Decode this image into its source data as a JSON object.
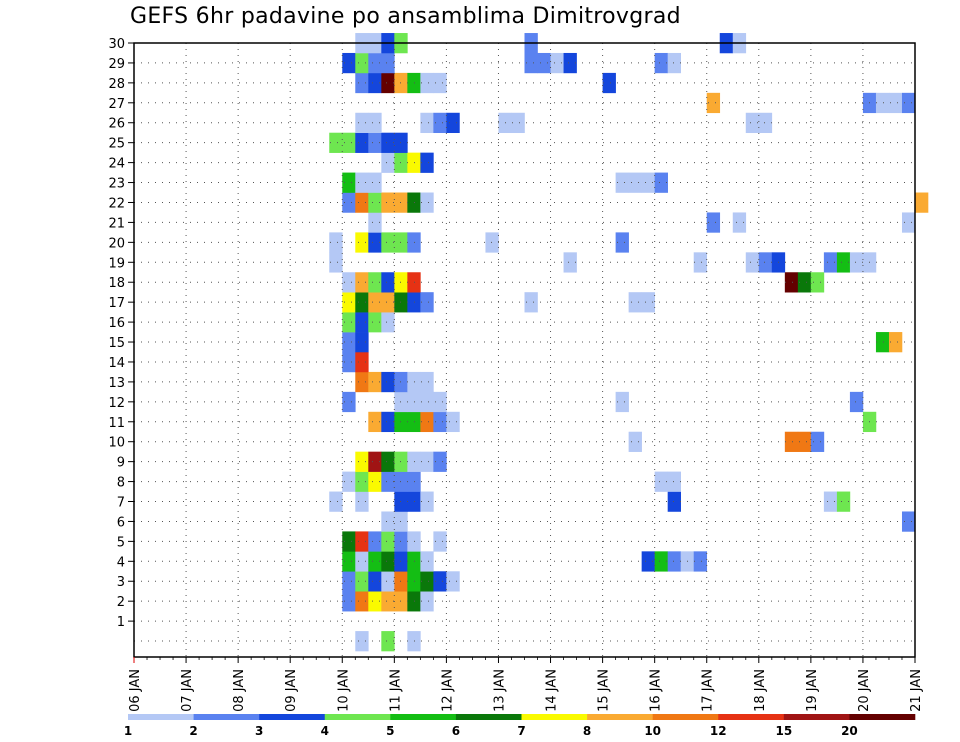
{
  "chart_data": {
    "type": "heatmap",
    "title": "GEFS 6hr padavine po ansamblima Dimitrovgrad",
    "xlabel": "",
    "ylabel": "",
    "x_ticks": [
      "06 JAN",
      "07 JAN",
      "08 JAN",
      "09 JAN",
      "10 JAN",
      "11 JAN",
      "12 JAN",
      "13 JAN",
      "14 JAN",
      "15 JAN",
      "16 JAN",
      "17 JAN",
      "18 JAN",
      "19 JAN",
      "20 JAN",
      "21 JAN"
    ],
    "xlim": [
      "06 JAN 00Z",
      "21 JAN 00Z"
    ],
    "time_step": "6hr",
    "y_ticks": [
      "1",
      "2",
      "3",
      "4",
      "5",
      "6",
      "7",
      "8",
      "9",
      "10",
      "11",
      "12",
      "13",
      "14",
      "15",
      "16",
      "17",
      "18",
      "19",
      "20",
      "21",
      "22",
      "23",
      "24",
      "25",
      "26",
      "27",
      "28",
      "29",
      "30"
    ],
    "ylim": [
      0,
      30
    ],
    "grid": "dotted",
    "colorbar": {
      "placement": "bottom",
      "labels": [
        "1",
        "2",
        "3",
        "4",
        "5",
        "6",
        "7",
        "8",
        "10",
        "12",
        "15",
        "20"
      ],
      "colors": [
        "#b4c8f5",
        "#5a82f0",
        "#1446dc",
        "#6ee650",
        "#14be14",
        "#0a780a",
        "#fafa00",
        "#faaa32",
        "#f07814",
        "#e63214",
        "#a01414",
        "#640000"
      ]
    },
    "cells": [
      {
        "m": 0,
        "s": 17,
        "l": 1
      },
      {
        "m": 0,
        "s": 19,
        "l": 4
      },
      {
        "m": 0,
        "s": 21,
        "l": 1
      },
      {
        "m": 2,
        "s": 16,
        "l": 2
      },
      {
        "m": 2,
        "s": 17,
        "l": 9
      },
      {
        "m": 2,
        "s": 18,
        "l": 7
      },
      {
        "m": 2,
        "s": 19,
        "l": 8
      },
      {
        "m": 2,
        "s": 20,
        "l": 8
      },
      {
        "m": 2,
        "s": 21,
        "l": 6
      },
      {
        "m": 2,
        "s": 22,
        "l": 1
      },
      {
        "m": 3,
        "s": 16,
        "l": 2
      },
      {
        "m": 3,
        "s": 17,
        "l": 4
      },
      {
        "m": 3,
        "s": 18,
        "l": 3
      },
      {
        "m": 3,
        "s": 19,
        "l": 1
      },
      {
        "m": 3,
        "s": 20,
        "l": 9
      },
      {
        "m": 3,
        "s": 21,
        "l": 5
      },
      {
        "m": 3,
        "s": 22,
        "l": 6
      },
      {
        "m": 3,
        "s": 23,
        "l": 3
      },
      {
        "m": 3,
        "s": 24,
        "l": 1
      },
      {
        "m": 4,
        "s": 16,
        "l": 5
      },
      {
        "m": 4,
        "s": 17,
        "l": 1
      },
      {
        "m": 4,
        "s": 18,
        "l": 5
      },
      {
        "m": 4,
        "s": 19,
        "l": 6
      },
      {
        "m": 4,
        "s": 20,
        "l": 3
      },
      {
        "m": 4,
        "s": 21,
        "l": 5
      },
      {
        "m": 4,
        "s": 22,
        "l": 1
      },
      {
        "m": 4,
        "s": 39,
        "l": 3
      },
      {
        "m": 4,
        "s": 40,
        "l": 5
      },
      {
        "m": 4,
        "s": 41,
        "l": 2
      },
      {
        "m": 4,
        "s": 42,
        "l": 1
      },
      {
        "m": 4,
        "s": 43,
        "l": 2
      },
      {
        "m": 5,
        "s": 16,
        "l": 6
      },
      {
        "m": 5,
        "s": 17,
        "l": 10
      },
      {
        "m": 5,
        "s": 18,
        "l": 2
      },
      {
        "m": 5,
        "s": 19,
        "l": 4
      },
      {
        "m": 5,
        "s": 20,
        "l": 2
      },
      {
        "m": 5,
        "s": 21,
        "l": 1
      },
      {
        "m": 5,
        "s": 23,
        "l": 1
      },
      {
        "m": 6,
        "s": 19,
        "l": 1
      },
      {
        "m": 6,
        "s": 20,
        "l": 1
      },
      {
        "m": 6,
        "s": 59,
        "l": 2
      },
      {
        "m": 7,
        "s": 15,
        "l": 1
      },
      {
        "m": 7,
        "s": 17,
        "l": 1
      },
      {
        "m": 7,
        "s": 20,
        "l": 3
      },
      {
        "m": 7,
        "s": 21,
        "l": 3
      },
      {
        "m": 7,
        "s": 22,
        "l": 1
      },
      {
        "m": 7,
        "s": 41,
        "l": 3
      },
      {
        "m": 7,
        "s": 53,
        "l": 1
      },
      {
        "m": 7,
        "s": 54,
        "l": 4
      },
      {
        "m": 8,
        "s": 16,
        "l": 1
      },
      {
        "m": 8,
        "s": 17,
        "l": 4
      },
      {
        "m": 8,
        "s": 18,
        "l": 7
      },
      {
        "m": 8,
        "s": 19,
        "l": 2
      },
      {
        "m": 8,
        "s": 20,
        "l": 2
      },
      {
        "m": 8,
        "s": 21,
        "l": 2
      },
      {
        "m": 8,
        "s": 40,
        "l": 1
      },
      {
        "m": 8,
        "s": 41,
        "l": 1
      },
      {
        "m": 9,
        "s": 17,
        "l": 7
      },
      {
        "m": 9,
        "s": 18,
        "l": 11
      },
      {
        "m": 9,
        "s": 19,
        "l": 6
      },
      {
        "m": 9,
        "s": 20,
        "l": 4
      },
      {
        "m": 9,
        "s": 21,
        "l": 1
      },
      {
        "m": 9,
        "s": 22,
        "l": 1
      },
      {
        "m": 9,
        "s": 23,
        "l": 2
      },
      {
        "m": 10,
        "s": 38,
        "l": 1
      },
      {
        "m": 10,
        "s": 50,
        "l": 9
      },
      {
        "m": 10,
        "s": 51,
        "l": 9
      },
      {
        "m": 10,
        "s": 52,
        "l": 2
      },
      {
        "m": 11,
        "s": 18,
        "l": 8
      },
      {
        "m": 11,
        "s": 19,
        "l": 3
      },
      {
        "m": 11,
        "s": 20,
        "l": 5
      },
      {
        "m": 11,
        "s": 21,
        "l": 5
      },
      {
        "m": 11,
        "s": 22,
        "l": 9
      },
      {
        "m": 11,
        "s": 23,
        "l": 2
      },
      {
        "m": 11,
        "s": 24,
        "l": 1
      },
      {
        "m": 11,
        "s": 56,
        "l": 4
      },
      {
        "m": 12,
        "s": 16,
        "l": 2
      },
      {
        "m": 12,
        "s": 20,
        "l": 1
      },
      {
        "m": 12,
        "s": 21,
        "l": 1
      },
      {
        "m": 12,
        "s": 22,
        "l": 1
      },
      {
        "m": 12,
        "s": 23,
        "l": 1
      },
      {
        "m": 12,
        "s": 37,
        "l": 1
      },
      {
        "m": 12,
        "s": 55,
        "l": 2
      },
      {
        "m": 13,
        "s": 17,
        "l": 9
      },
      {
        "m": 13,
        "s": 18,
        "l": 8
      },
      {
        "m": 13,
        "s": 19,
        "l": 3
      },
      {
        "m": 13,
        "s": 20,
        "l": 2
      },
      {
        "m": 13,
        "s": 21,
        "l": 1
      },
      {
        "m": 13,
        "s": 22,
        "l": 1
      },
      {
        "m": 14,
        "s": 16,
        "l": 2
      },
      {
        "m": 14,
        "s": 17,
        "l": 10
      },
      {
        "m": 15,
        "s": 16,
        "l": 2
      },
      {
        "m": 15,
        "s": 17,
        "l": 3
      },
      {
        "m": 15,
        "s": 57,
        "l": 5
      },
      {
        "m": 15,
        "s": 58,
        "l": 8
      },
      {
        "m": 16,
        "s": 16,
        "l": 4
      },
      {
        "m": 16,
        "s": 17,
        "l": 3
      },
      {
        "m": 16,
        "s": 18,
        "l": 4
      },
      {
        "m": 16,
        "s": 19,
        "l": 1
      },
      {
        "m": 17,
        "s": 16,
        "l": 7
      },
      {
        "m": 17,
        "s": 17,
        "l": 6
      },
      {
        "m": 17,
        "s": 18,
        "l": 8
      },
      {
        "m": 17,
        "s": 19,
        "l": 8
      },
      {
        "m": 17,
        "s": 20,
        "l": 6
      },
      {
        "m": 17,
        "s": 21,
        "l": 3
      },
      {
        "m": 17,
        "s": 22,
        "l": 2
      },
      {
        "m": 17,
        "s": 30,
        "l": 1
      },
      {
        "m": 17,
        "s": 38,
        "l": 1
      },
      {
        "m": 17,
        "s": 39,
        "l": 1
      },
      {
        "m": 18,
        "s": 16,
        "l": 1
      },
      {
        "m": 18,
        "s": 17,
        "l": 8
      },
      {
        "m": 18,
        "s": 18,
        "l": 4
      },
      {
        "m": 18,
        "s": 19,
        "l": 3
      },
      {
        "m": 18,
        "s": 20,
        "l": 7
      },
      {
        "m": 18,
        "s": 21,
        "l": 10
      },
      {
        "m": 18,
        "s": 50,
        "l": 12
      },
      {
        "m": 18,
        "s": 51,
        "l": 6
      },
      {
        "m": 18,
        "s": 52,
        "l": 4
      },
      {
        "m": 19,
        "s": 15,
        "l": 1
      },
      {
        "m": 19,
        "s": 33,
        "l": 1
      },
      {
        "m": 19,
        "s": 43,
        "l": 1
      },
      {
        "m": 19,
        "s": 47,
        "l": 1
      },
      {
        "m": 19,
        "s": 48,
        "l": 2
      },
      {
        "m": 19,
        "s": 49,
        "l": 3
      },
      {
        "m": 19,
        "s": 53,
        "l": 2
      },
      {
        "m": 19,
        "s": 54,
        "l": 5
      },
      {
        "m": 19,
        "s": 55,
        "l": 1
      },
      {
        "m": 19,
        "s": 56,
        "l": 1
      },
      {
        "m": 20,
        "s": 15,
        "l": 1
      },
      {
        "m": 20,
        "s": 17,
        "l": 7
      },
      {
        "m": 20,
        "s": 18,
        "l": 3
      },
      {
        "m": 20,
        "s": 19,
        "l": 4
      },
      {
        "m": 20,
        "s": 20,
        "l": 4
      },
      {
        "m": 20,
        "s": 21,
        "l": 2
      },
      {
        "m": 20,
        "s": 27,
        "l": 1
      },
      {
        "m": 20,
        "s": 37,
        "l": 2
      },
      {
        "m": 21,
        "s": 18,
        "l": 1
      },
      {
        "m": 21,
        "s": 44,
        "l": 2
      },
      {
        "m": 21,
        "s": 46,
        "l": 1
      },
      {
        "m": 21,
        "s": 59,
        "l": 1
      },
      {
        "m": 22,
        "s": 16,
        "l": 2
      },
      {
        "m": 22,
        "s": 17,
        "l": 9
      },
      {
        "m": 22,
        "s": 18,
        "l": 4
      },
      {
        "m": 22,
        "s": 19,
        "l": 8
      },
      {
        "m": 22,
        "s": 20,
        "l": 8
      },
      {
        "m": 22,
        "s": 21,
        "l": 6
      },
      {
        "m": 22,
        "s": 22,
        "l": 1
      },
      {
        "m": 22,
        "s": 60,
        "l": 8
      },
      {
        "m": 23,
        "s": 16,
        "l": 5
      },
      {
        "m": 23,
        "s": 17,
        "l": 1
      },
      {
        "m": 23,
        "s": 18,
        "l": 1
      },
      {
        "m": 23,
        "s": 37,
        "l": 1
      },
      {
        "m": 23,
        "s": 38,
        "l": 1
      },
      {
        "m": 23,
        "s": 39,
        "l": 1
      },
      {
        "m": 23,
        "s": 40,
        "l": 2
      },
      {
        "m": 24,
        "s": 19,
        "l": 1
      },
      {
        "m": 24,
        "s": 20,
        "l": 4
      },
      {
        "m": 24,
        "s": 21,
        "l": 7
      },
      {
        "m": 24,
        "s": 22,
        "l": 3
      },
      {
        "m": 25,
        "s": 15,
        "l": 4
      },
      {
        "m": 25,
        "s": 16,
        "l": 4
      },
      {
        "m": 25,
        "s": 17,
        "l": 3
      },
      {
        "m": 25,
        "s": 18,
        "l": 2
      },
      {
        "m": 25,
        "s": 19,
        "l": 3
      },
      {
        "m": 25,
        "s": 20,
        "l": 3
      },
      {
        "m": 26,
        "s": 17,
        "l": 1
      },
      {
        "m": 26,
        "s": 18,
        "l": 1
      },
      {
        "m": 26,
        "s": 22,
        "l": 1
      },
      {
        "m": 26,
        "s": 23,
        "l": 2
      },
      {
        "m": 26,
        "s": 24,
        "l": 3
      },
      {
        "m": 26,
        "s": 28,
        "l": 1
      },
      {
        "m": 26,
        "s": 29,
        "l": 1
      },
      {
        "m": 26,
        "s": 47,
        "l": 1
      },
      {
        "m": 26,
        "s": 48,
        "l": 1
      },
      {
        "m": 27,
        "s": 44,
        "l": 8
      },
      {
        "m": 27,
        "s": 56,
        "l": 2
      },
      {
        "m": 27,
        "s": 57,
        "l": 1
      },
      {
        "m": 27,
        "s": 58,
        "l": 1
      },
      {
        "m": 27,
        "s": 59,
        "l": 2
      },
      {
        "m": 28,
        "s": 17,
        "l": 2
      },
      {
        "m": 28,
        "s": 18,
        "l": 3
      },
      {
        "m": 28,
        "s": 19,
        "l": 12
      },
      {
        "m": 28,
        "s": 20,
        "l": 8
      },
      {
        "m": 28,
        "s": 21,
        "l": 5
      },
      {
        "m": 28,
        "s": 22,
        "l": 1
      },
      {
        "m": 28,
        "s": 23,
        "l": 1
      },
      {
        "m": 28,
        "s": 36,
        "l": 3
      },
      {
        "m": 29,
        "s": 16,
        "l": 3
      },
      {
        "m": 29,
        "s": 17,
        "l": 4
      },
      {
        "m": 29,
        "s": 18,
        "l": 2
      },
      {
        "m": 29,
        "s": 19,
        "l": 2
      },
      {
        "m": 29,
        "s": 30,
        "l": 2
      },
      {
        "m": 29,
        "s": 31,
        "l": 2
      },
      {
        "m": 29,
        "s": 32,
        "l": 1
      },
      {
        "m": 29,
        "s": 33,
        "l": 3
      },
      {
        "m": 29,
        "s": 40,
        "l": 2
      },
      {
        "m": 29,
        "s": 41,
        "l": 1
      },
      {
        "m": 30,
        "s": 17,
        "l": 1
      },
      {
        "m": 30,
        "s": 18,
        "l": 1
      },
      {
        "m": 30,
        "s": 19,
        "l": 3
      },
      {
        "m": 30,
        "s": 20,
        "l": 4
      },
      {
        "m": 30,
        "s": 30,
        "l": 2
      },
      {
        "m": 30,
        "s": 45,
        "l": 3
      },
      {
        "m": 30,
        "s": 46,
        "l": 1
      }
    ]
  }
}
